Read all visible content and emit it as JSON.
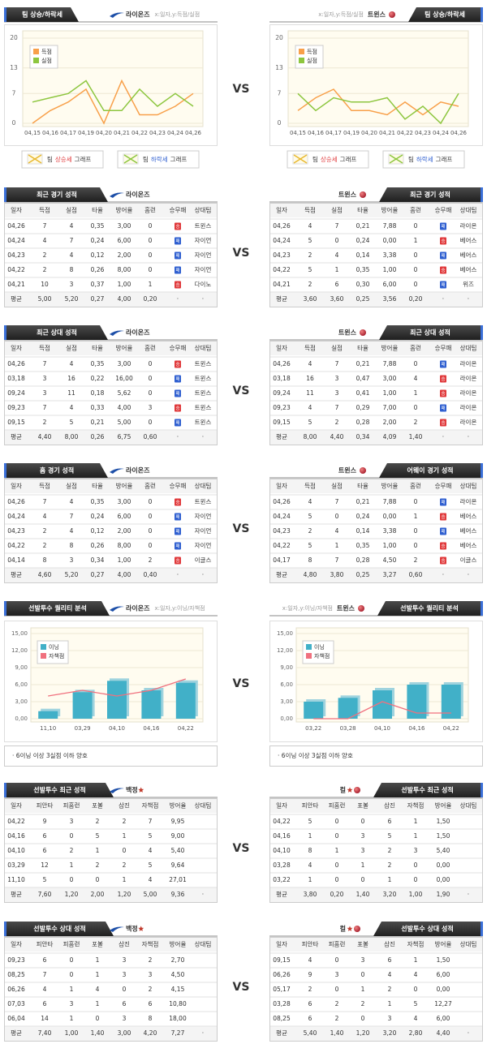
{
  "vs": "VS",
  "result_colors": {
    "승": "#e0393b",
    "패": "#2f5fd0"
  },
  "chart_data": [
    {
      "type": "line",
      "title": "팀 상승/하락세",
      "team": "라이온즈",
      "axis_note": "x:일자,y:득점/실점",
      "categories": [
        "04,15",
        "04,16",
        "04,17",
        "04,19",
        "04,20",
        "04,21",
        "04,22",
        "04,23",
        "04,24",
        "04,26"
      ],
      "series": [
        {
          "name": "득점",
          "color": "#f8a04a",
          "values": [
            0,
            3,
            5,
            8,
            0,
            10,
            2,
            2,
            4,
            7
          ]
        },
        {
          "name": "실점",
          "color": "#8dc63f",
          "values": [
            5,
            6,
            7,
            10,
            3,
            3,
            8,
            4,
            7,
            4
          ]
        }
      ],
      "ylim": [
        0,
        20
      ],
      "yticks": [
        0,
        7,
        13,
        20
      ],
      "grid": true,
      "legend_position": "upper left",
      "footer": [
        [
          "팀",
          "상승세",
          "그래프"
        ],
        [
          "팀",
          "하락세",
          "그래프"
        ]
      ]
    },
    {
      "type": "line",
      "title": "팀 상승/하락세",
      "team": "트윈스",
      "axis_note": "x:일자,y:득점/실점",
      "categories": [
        "04,15",
        "04,16",
        "04,17",
        "04,19",
        "04,20",
        "04,21",
        "04,22",
        "04,23",
        "04,24",
        "04,26"
      ],
      "series": [
        {
          "name": "득점",
          "color": "#f8a04a",
          "values": [
            3,
            6,
            8,
            3,
            3,
            2,
            5,
            2,
            5,
            4
          ]
        },
        {
          "name": "실점",
          "color": "#8dc63f",
          "values": [
            7,
            3,
            6,
            5,
            5,
            6,
            1,
            4,
            0,
            7
          ]
        }
      ],
      "ylim": [
        0,
        20
      ],
      "yticks": [
        0,
        7,
        13,
        20
      ],
      "grid": true,
      "legend_position": "upper left",
      "footer": [
        [
          "팀",
          "상승세",
          "그래프"
        ],
        [
          "팀",
          "하락세",
          "그래프"
        ]
      ]
    },
    {
      "type": "bar",
      "title": "선발투수 퀄리티 분석",
      "team": "라이온즈",
      "axis_note": "x:일자,y:이닝/자책점",
      "categories": [
        "11,10",
        "03,29",
        "04,10",
        "04,16",
        "04,22"
      ],
      "series": [
        {
          "name": "이닝",
          "color": "#41b0c8",
          "values": [
            1.33,
            4.67,
            6.67,
            5,
            6.33
          ]
        },
        {
          "name": "자책점",
          "color": "#f0707e",
          "type": "line",
          "values": [
            4,
            5,
            4,
            5,
            7
          ]
        }
      ],
      "ylim": [
        0,
        15
      ],
      "yticks": [
        {
          "value": 0,
          "label": "0,00"
        },
        {
          "value": 3,
          "label": "3,00"
        },
        {
          "value": 6,
          "label": "6,00"
        },
        {
          "value": 9,
          "label": "9,00"
        },
        {
          "value": 12,
          "label": "12,00"
        },
        {
          "value": 15,
          "label": "15,00"
        }
      ],
      "legend_position": "upper left",
      "note": "· 6이닝 이상 3실점 이하 양호"
    },
    {
      "type": "bar",
      "title": "선발투수 퀄리티 분석",
      "team": "트윈스",
      "axis_note": "x:일자,y:이닝/자책점",
      "categories": [
        "03,22",
        "03,28",
        "04,10",
        "04,16",
        "04,22"
      ],
      "series": [
        {
          "name": "이닝",
          "color": "#41b0c8",
          "values": [
            3,
            3.67,
            5,
            6,
            6
          ]
        },
        {
          "name": "자책점",
          "color": "#f0707e",
          "type": "line",
          "values": [
            0,
            0,
            3,
            1,
            1
          ]
        }
      ],
      "ylim": [
        0,
        15
      ],
      "yticks": [
        {
          "value": 0,
          "label": "0,00"
        },
        {
          "value": 3,
          "label": "3,00"
        },
        {
          "value": 6,
          "label": "6,00"
        },
        {
          "value": 9,
          "label": "9,00"
        },
        {
          "value": 12,
          "label": "12,00"
        },
        {
          "value": 15,
          "label": "15,00"
        }
      ],
      "legend_position": "upper left",
      "note": "· 6이닝 이상 3실점 이하 양호"
    }
  ],
  "tables": [
    {
      "title": "최근 경기 성적",
      "team": "라이온즈",
      "columns": [
        "일자",
        "득점",
        "실점",
        "타율",
        "방어율",
        "홈런",
        "승무패",
        "상대팀"
      ],
      "rows": [
        [
          "04,26",
          "7",
          "4",
          "0,35",
          "3,00",
          "0",
          "승",
          "트윈스"
        ],
        [
          "04,24",
          "4",
          "7",
          "0,24",
          "6,00",
          "0",
          "패",
          "자이언"
        ],
        [
          "04,23",
          "2",
          "4",
          "0,12",
          "2,00",
          "0",
          "패",
          "자이언"
        ],
        [
          "04,22",
          "2",
          "8",
          "0,26",
          "8,00",
          "0",
          "패",
          "자이언"
        ],
        [
          "04,21",
          "10",
          "3",
          "0,37",
          "1,00",
          "1",
          "승",
          "다이노"
        ],
        [
          "평균",
          "5,00",
          "5,20",
          "0,27",
          "4,00",
          "0,20",
          "·",
          "·"
        ]
      ]
    },
    {
      "title": "최근 경기 성적",
      "team": "트윈스",
      "columns": [
        "일자",
        "득점",
        "실점",
        "타율",
        "방어율",
        "홈런",
        "승무패",
        "상대팀"
      ],
      "rows": [
        [
          "04,26",
          "4",
          "7",
          "0,21",
          "7,88",
          "0",
          "패",
          "라이온"
        ],
        [
          "04,24",
          "5",
          "0",
          "0,24",
          "0,00",
          "1",
          "승",
          "베어스"
        ],
        [
          "04,23",
          "2",
          "4",
          "0,14",
          "3,38",
          "0",
          "패",
          "베어스"
        ],
        [
          "04,22",
          "5",
          "1",
          "0,35",
          "1,00",
          "0",
          "승",
          "베어스"
        ],
        [
          "04,21",
          "2",
          "6",
          "0,30",
          "6,00",
          "0",
          "패",
          "위즈"
        ],
        [
          "평균",
          "3,60",
          "3,60",
          "0,25",
          "3,56",
          "0,20",
          "·",
          "·"
        ]
      ]
    },
    {
      "title": "최근 상대 성적",
      "team": "라이온즈",
      "columns": [
        "일자",
        "득점",
        "실점",
        "타율",
        "방어율",
        "홈런",
        "승무패",
        "상대팀"
      ],
      "rows": [
        [
          "04,26",
          "7",
          "4",
          "0,35",
          "3,00",
          "0",
          "승",
          "트윈스"
        ],
        [
          "03,18",
          "3",
          "16",
          "0,22",
          "16,00",
          "0",
          "패",
          "트윈스"
        ],
        [
          "09,24",
          "3",
          "11",
          "0,18",
          "5,62",
          "0",
          "패",
          "트윈스"
        ],
        [
          "09,23",
          "7",
          "4",
          "0,33",
          "4,00",
          "3",
          "승",
          "트윈스"
        ],
        [
          "09,15",
          "2",
          "5",
          "0,21",
          "5,00",
          "0",
          "패",
          "트윈스"
        ],
        [
          "평균",
          "4,40",
          "8,00",
          "0,26",
          "6,75",
          "0,60",
          "·",
          "·"
        ]
      ]
    },
    {
      "title": "최근 상대 성적",
      "team": "트윈스",
      "columns": [
        "일자",
        "득점",
        "실점",
        "타율",
        "방어율",
        "홈런",
        "승무패",
        "상대팀"
      ],
      "rows": [
        [
          "04,26",
          "4",
          "7",
          "0,21",
          "7,88",
          "0",
          "패",
          "라이온"
        ],
        [
          "03,18",
          "16",
          "3",
          "0,47",
          "3,00",
          "4",
          "승",
          "라이온"
        ],
        [
          "09,24",
          "11",
          "3",
          "0,41",
          "1,00",
          "1",
          "승",
          "라이온"
        ],
        [
          "09,23",
          "4",
          "7",
          "0,29",
          "7,00",
          "0",
          "패",
          "라이온"
        ],
        [
          "09,15",
          "5",
          "2",
          "0,28",
          "2,00",
          "2",
          "승",
          "라이온"
        ],
        [
          "평균",
          "8,00",
          "4,40",
          "0,34",
          "4,09",
          "1,40",
          "·",
          "·"
        ]
      ]
    },
    {
      "title": "홈 경기 성적",
      "team": "라이온즈",
      "columns": [
        "일자",
        "득점",
        "실점",
        "타율",
        "방어율",
        "홈런",
        "승무패",
        "상대팀"
      ],
      "rows": [
        [
          "04,26",
          "7",
          "4",
          "0,35",
          "3,00",
          "0",
          "승",
          "트윈스"
        ],
        [
          "04,24",
          "4",
          "7",
          "0,24",
          "6,00",
          "0",
          "패",
          "자이언"
        ],
        [
          "04,23",
          "2",
          "4",
          "0,12",
          "2,00",
          "0",
          "패",
          "자이언"
        ],
        [
          "04,22",
          "2",
          "8",
          "0,26",
          "8,00",
          "0",
          "패",
          "자이언"
        ],
        [
          "04,14",
          "8",
          "3",
          "0,34",
          "1,00",
          "2",
          "승",
          "이글스"
        ],
        [
          "평균",
          "4,60",
          "5,20",
          "0,27",
          "4,00",
          "0,40",
          "·",
          "·"
        ]
      ]
    },
    {
      "title": "어웨이 경기 성적",
      "team": "트윈스",
      "columns": [
        "일자",
        "득점",
        "실점",
        "타율",
        "방어율",
        "홈런",
        "승무패",
        "상대팀"
      ],
      "rows": [
        [
          "04,26",
          "4",
          "7",
          "0,21",
          "7,88",
          "0",
          "패",
          "라이온"
        ],
        [
          "04,24",
          "5",
          "0",
          "0,24",
          "0,00",
          "1",
          "승",
          "베어스"
        ],
        [
          "04,23",
          "2",
          "4",
          "0,14",
          "3,38",
          "0",
          "패",
          "베어스"
        ],
        [
          "04,22",
          "5",
          "1",
          "0,35",
          "1,00",
          "0",
          "승",
          "베어스"
        ],
        [
          "04,17",
          "8",
          "7",
          "0,28",
          "4,50",
          "2",
          "승",
          "이글스"
        ],
        [
          "평균",
          "4,80",
          "3,80",
          "0,25",
          "3,27",
          "0,60",
          "·",
          "·"
        ]
      ]
    },
    {
      "title": "선발투수 최근 성적",
      "team": "백정",
      "columns": [
        "일자",
        "피안타",
        "피홈런",
        "포볼",
        "삼진",
        "자책점",
        "방어율",
        "상대팀"
      ],
      "rows": [
        [
          "04,22",
          "9",
          "3",
          "2",
          "2",
          "7",
          "9,95"
        ],
        [
          "04,16",
          "6",
          "0",
          "5",
          "1",
          "5",
          "9,00"
        ],
        [
          "04,10",
          "6",
          "2",
          "1",
          "0",
          "4",
          "5,40"
        ],
        [
          "03,29",
          "12",
          "1",
          "2",
          "2",
          "5",
          "9,64"
        ],
        [
          "11,10",
          "5",
          "0",
          "0",
          "1",
          "4",
          "27,01"
        ],
        [
          "평균",
          "7,60",
          "1,20",
          "2,00",
          "1,20",
          "5,00",
          "9,36",
          "·"
        ]
      ]
    },
    {
      "title": "선발투수 최근 성적",
      "team": "컬",
      "columns": [
        "일자",
        "피안타",
        "피홈런",
        "포볼",
        "삼진",
        "자책점",
        "방어율",
        "상대팀"
      ],
      "rows": [
        [
          "04,22",
          "5",
          "0",
          "0",
          "6",
          "1",
          "1,50"
        ],
        [
          "04,16",
          "1",
          "0",
          "3",
          "5",
          "1",
          "1,50"
        ],
        [
          "04,10",
          "8",
          "1",
          "3",
          "2",
          "3",
          "5,40"
        ],
        [
          "03,28",
          "4",
          "0",
          "1",
          "2",
          "0",
          "0,00"
        ],
        [
          "03,22",
          "1",
          "0",
          "0",
          "1",
          "0",
          "0,00"
        ],
        [
          "평균",
          "3,80",
          "0,20",
          "1,40",
          "3,20",
          "1,00",
          "1,90",
          "·"
        ]
      ]
    },
    {
      "title": "선발투수 상대 성적",
      "team": "백정",
      "columns": [
        "일자",
        "피안타",
        "피홈런",
        "포볼",
        "삼진",
        "자책점",
        "방어율",
        "상대팀"
      ],
      "rows": [
        [
          "09,23",
          "6",
          "0",
          "1",
          "3",
          "2",
          "2,70"
        ],
        [
          "08,25",
          "7",
          "0",
          "1",
          "3",
          "3",
          "4,50"
        ],
        [
          "06,26",
          "4",
          "1",
          "4",
          "0",
          "2",
          "4,15"
        ],
        [
          "07,03",
          "6",
          "3",
          "1",
          "6",
          "6",
          "10,80"
        ],
        [
          "06,04",
          "14",
          "1",
          "0",
          "3",
          "8",
          "18,00"
        ],
        [
          "평균",
          "7,40",
          "1,00",
          "1,40",
          "3,00",
          "4,20",
          "7,27",
          "·"
        ]
      ]
    },
    {
      "title": "선발투수 상대 성적",
      "team": "컬",
      "columns": [
        "일자",
        "피안타",
        "피홈런",
        "포볼",
        "삼진",
        "자책점",
        "방어율",
        "상대팀"
      ],
      "rows": [
        [
          "09,15",
          "4",
          "0",
          "3",
          "6",
          "1",
          "1,50"
        ],
        [
          "06,26",
          "9",
          "3",
          "0",
          "4",
          "4",
          "6,00"
        ],
        [
          "05,17",
          "2",
          "0",
          "1",
          "2",
          "0",
          "0,00"
        ],
        [
          "03,28",
          "6",
          "2",
          "2",
          "1",
          "5",
          "12,27"
        ],
        [
          "08,25",
          "6",
          "2",
          "0",
          "3",
          "4",
          "6,00"
        ],
        [
          "평균",
          "5,40",
          "1,40",
          "1,20",
          "3,20",
          "2,80",
          "4,40",
          "·"
        ]
      ]
    }
  ]
}
